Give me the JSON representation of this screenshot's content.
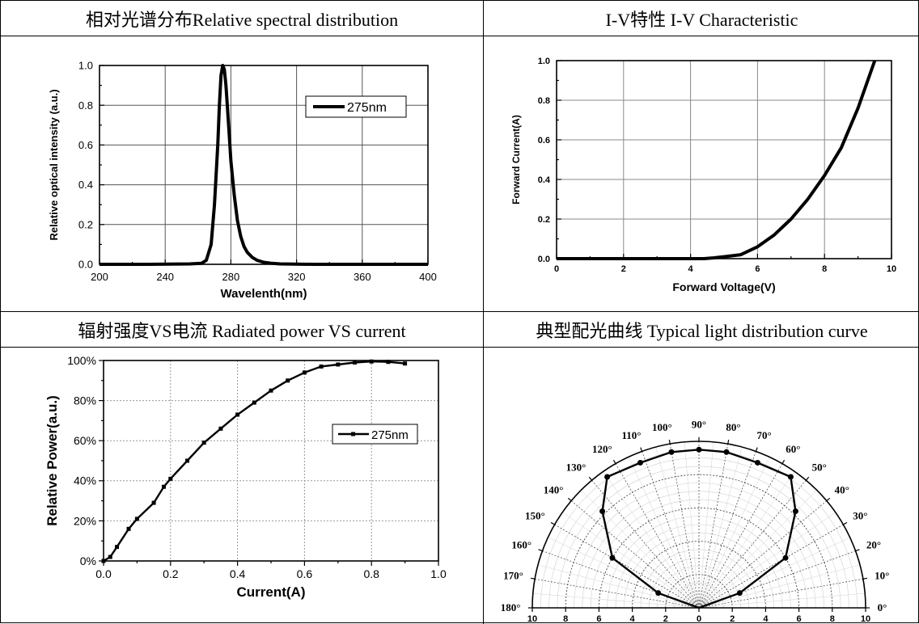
{
  "headers": {
    "spectral": "相对光谱分布Relative spectral distribution",
    "iv": "I-V特性 I-V Characteristic",
    "power": "辐射强度VS电流 Radiated power VS current",
    "polar": "典型配光曲线 Typical light distribution curve"
  },
  "chart_data": [
    {
      "type": "line",
      "xlabel": "Wavelenth(nm)",
      "ylabel": "Relative optical intensity (a.u.)",
      "xlim": [
        200,
        400
      ],
      "ylim": [
        0,
        1.0
      ],
      "xticks": [
        "200",
        "240",
        "280",
        "320",
        "360",
        "400"
      ],
      "yticks": [
        "0.0",
        "0.2",
        "0.4",
        "0.6",
        "0.8",
        "1.0"
      ],
      "grid": true,
      "legend_position": "top-right",
      "series": [
        {
          "name": "275nm",
          "x": [
            200,
            230,
            255,
            262,
            265,
            268,
            270,
            272,
            273,
            274,
            275,
            276,
            277,
            278,
            279,
            280,
            282,
            284,
            286,
            288,
            290,
            293,
            296,
            300,
            305,
            310,
            330,
            360,
            400
          ],
          "y": [
            0.0,
            0.0,
            0.002,
            0.005,
            0.02,
            0.1,
            0.3,
            0.6,
            0.8,
            0.95,
            1.0,
            0.98,
            0.9,
            0.78,
            0.65,
            0.52,
            0.35,
            0.22,
            0.14,
            0.09,
            0.06,
            0.035,
            0.02,
            0.01,
            0.005,
            0.002,
            0.0,
            0.0,
            0.0
          ]
        }
      ]
    },
    {
      "type": "line",
      "xlabel": "Forward Voltage(V)",
      "ylabel": "Forward Current(A)",
      "xlim": [
        0,
        10
      ],
      "ylim": [
        0,
        1.0
      ],
      "xticks": [
        "0",
        "2",
        "4",
        "6",
        "8",
        "10"
      ],
      "yticks": [
        "0.0",
        "0.2",
        "0.4",
        "0.6",
        "0.8",
        "1.0"
      ],
      "grid": true,
      "series": [
        {
          "x": [
            0,
            4.4,
            4.7,
            5.0,
            5.5,
            6.0,
            6.5,
            7.0,
            7.5,
            8.0,
            8.5,
            9.0,
            9.5
          ],
          "y": [
            0,
            0,
            0.004,
            0.01,
            0.02,
            0.06,
            0.12,
            0.2,
            0.3,
            0.42,
            0.56,
            0.76,
            1.0
          ]
        }
      ]
    },
    {
      "type": "line",
      "xlabel": "Current(A)",
      "ylabel": "Relative Power(a.u.)",
      "xlim": [
        0.0,
        1.0
      ],
      "ylim": [
        0,
        100
      ],
      "xticks": [
        "0.0",
        "0.2",
        "0.4",
        "0.6",
        "0.8",
        "1.0"
      ],
      "yticks": [
        "0%",
        "20%",
        "40%",
        "60%",
        "80%",
        "100%"
      ],
      "grid": true,
      "legend_position": "right",
      "series": [
        {
          "name": "275nm",
          "x": [
            0.0,
            0.02,
            0.04,
            0.075,
            0.1,
            0.15,
            0.18,
            0.2,
            0.25,
            0.3,
            0.35,
            0.4,
            0.45,
            0.5,
            0.55,
            0.6,
            0.65,
            0.7,
            0.75,
            0.8,
            0.85,
            0.9
          ],
          "y": [
            0,
            2,
            7,
            16,
            21,
            29,
            37,
            41,
            50,
            59,
            66,
            73,
            79,
            85,
            90,
            94,
            97,
            98,
            99,
            99.5,
            99.3,
            98.5
          ]
        }
      ]
    },
    {
      "type": "scatter",
      "polar": true,
      "radial_ticks": [
        "10",
        "8",
        "6",
        "4",
        "2",
        "0",
        "2",
        "4",
        "6",
        "8",
        "10"
      ],
      "angle_labels": [
        "0°",
        "10°",
        "20°",
        "30°",
        "40°",
        "50°",
        "60°",
        "70°",
        "80°",
        "90°",
        "100°",
        "110°",
        "120°",
        "130°",
        "140°",
        "150°",
        "160°",
        "170°",
        "180°"
      ],
      "rlim": [
        0,
        10
      ],
      "series": [
        {
          "theta": [
            0,
            20,
            40,
            60,
            80,
            100,
            120,
            140,
            160,
            180
          ],
          "r": [
            0.0,
            2.6,
            5.8,
            7.8,
            9.5,
            9.5,
            7.8,
            5.8,
            2.6,
            0.0
          ],
          "markers": [
            {
              "angle": 20,
              "r": 2.6
            },
            {
              "angle": 30,
              "r": 6.0
            },
            {
              "angle": 45,
              "r": 8.2
            },
            {
              "angle": 55,
              "r": 9.6
            },
            {
              "angle": 68,
              "r": 9.4
            },
            {
              "angle": 80,
              "r": 9.5
            },
            {
              "angle": 90,
              "r": 9.5
            },
            {
              "angle": 100,
              "r": 9.5
            },
            {
              "angle": 112,
              "r": 9.4
            },
            {
              "angle": 125,
              "r": 9.6
            },
            {
              "angle": 135,
              "r": 8.2
            },
            {
              "angle": 150,
              "r": 6.0
            },
            {
              "angle": 160,
              "r": 2.6
            }
          ]
        }
      ]
    }
  ]
}
